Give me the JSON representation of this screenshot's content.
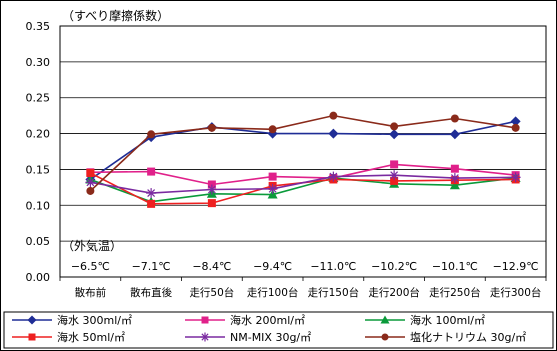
{
  "chart_data": {
    "type": "line",
    "ylabel": "（すべり摩擦係数）",
    "ylim": [
      0,
      0.35
    ],
    "yticks": [
      "0.00",
      "0.05",
      "0.10",
      "0.15",
      "0.20",
      "0.25",
      "0.30",
      "0.35"
    ],
    "grid": true,
    "legend_position": "bottom",
    "categories": [
      "散布前",
      "散布直後",
      "走行50台",
      "走行100台",
      "走行150台",
      "走行200台",
      "走行250台",
      "走行300台"
    ],
    "temperature_label": "（外気温）",
    "temperatures": [
      "−6.5℃",
      "−7.1℃",
      "−8.4℃",
      "−9.4℃",
      "−11.0℃",
      "−10.2℃",
      "−10.1℃",
      "−12.9℃"
    ],
    "series": [
      {
        "name": "海水 300ml/㎡",
        "color": "#1f2d96",
        "marker": "diamond",
        "values": [
          0.136,
          0.195,
          0.209,
          0.2,
          0.2,
          0.199,
          0.199,
          0.217
        ]
      },
      {
        "name": "海水 200ml/㎡",
        "color": "#e0208a",
        "marker": "square",
        "values": [
          0.146,
          0.147,
          0.129,
          0.14,
          0.138,
          0.157,
          0.151,
          0.142
        ]
      },
      {
        "name": "海水 100ml/㎡",
        "color": "#0a9a3a",
        "marker": "triangle",
        "values": [
          0.136,
          0.105,
          0.116,
          0.115,
          0.138,
          0.13,
          0.128,
          0.138
        ]
      },
      {
        "name": "海水 50ml/㎡",
        "color": "#ee2020",
        "marker": "square",
        "values": [
          0.145,
          0.102,
          0.103,
          0.127,
          0.136,
          0.134,
          0.135,
          0.136
        ]
      },
      {
        "name": "NM-MIX 30g/㎡",
        "color": "#7a2aa0",
        "marker": "star",
        "values": [
          0.132,
          0.117,
          0.122,
          0.123,
          0.14,
          0.142,
          0.138,
          0.139
        ]
      },
      {
        "name": "塩化ナトリウム 30g/㎡",
        "color": "#8a2a1a",
        "marker": "circle",
        "values": [
          0.12,
          0.199,
          0.208,
          0.206,
          0.225,
          0.21,
          0.221,
          0.208
        ]
      }
    ]
  }
}
